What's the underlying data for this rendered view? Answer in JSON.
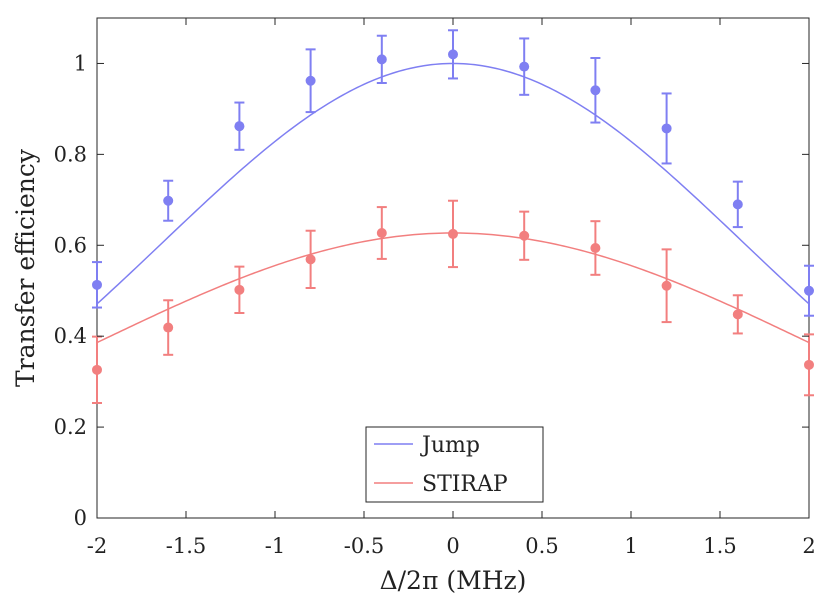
{
  "chart_data": {
    "type": "scatter",
    "xlabel": "Δ/2π (MHz)",
    "ylabel": "Transfer efficiency",
    "xlim": [
      -2,
      2
    ],
    "ylim": [
      0,
      1.1
    ],
    "grid": false,
    "legend_position": "bottom-center",
    "x_ticks": [
      -2,
      -1.5,
      -1,
      -0.5,
      0,
      0.5,
      1,
      1.5,
      2
    ],
    "x_tick_labels": [
      "-2",
      "-1.5",
      "-1",
      "-0.5",
      "0",
      "0.5",
      "1",
      "1.5",
      "2"
    ],
    "y_ticks": [
      0,
      0.2,
      0.4,
      0.6,
      0.8,
      1
    ],
    "y_tick_labels": [
      "0",
      "0.2",
      "0.4",
      "0.6",
      "0.8",
      "1"
    ],
    "series": [
      {
        "name": "Jump",
        "color": "#7f7ff2",
        "x": [
          -2,
          -1.6,
          -1.2,
          -0.8,
          -0.4,
          0,
          0.4,
          0.8,
          1.2,
          1.6,
          2
        ],
        "y": [
          0.513,
          0.698,
          0.862,
          0.962,
          1.009,
          1.02,
          0.993,
          0.941,
          0.857,
          0.69,
          0.5
        ],
        "err": [
          0.05,
          0.044,
          0.052,
          0.069,
          0.052,
          0.053,
          0.062,
          0.071,
          0.077,
          0.05,
          0.055
        ],
        "fit": {
          "peak": 1.0,
          "center": 0,
          "sigma": 1.63
        }
      },
      {
        "name": "STIRAP",
        "color": "#f27f7f",
        "x": [
          -2,
          -1.6,
          -1.2,
          -0.8,
          -0.4,
          0,
          0.4,
          0.8,
          1.2,
          1.6,
          2
        ],
        "y": [
          0.326,
          0.419,
          0.502,
          0.569,
          0.627,
          0.625,
          0.621,
          0.594,
          0.511,
          0.448,
          0.337
        ],
        "err": [
          0.073,
          0.06,
          0.051,
          0.063,
          0.057,
          0.073,
          0.053,
          0.059,
          0.08,
          0.042,
          0.067
        ],
        "fit": {
          "peak": 0.627,
          "center": 0,
          "sigma": 2.03
        }
      }
    ]
  }
}
